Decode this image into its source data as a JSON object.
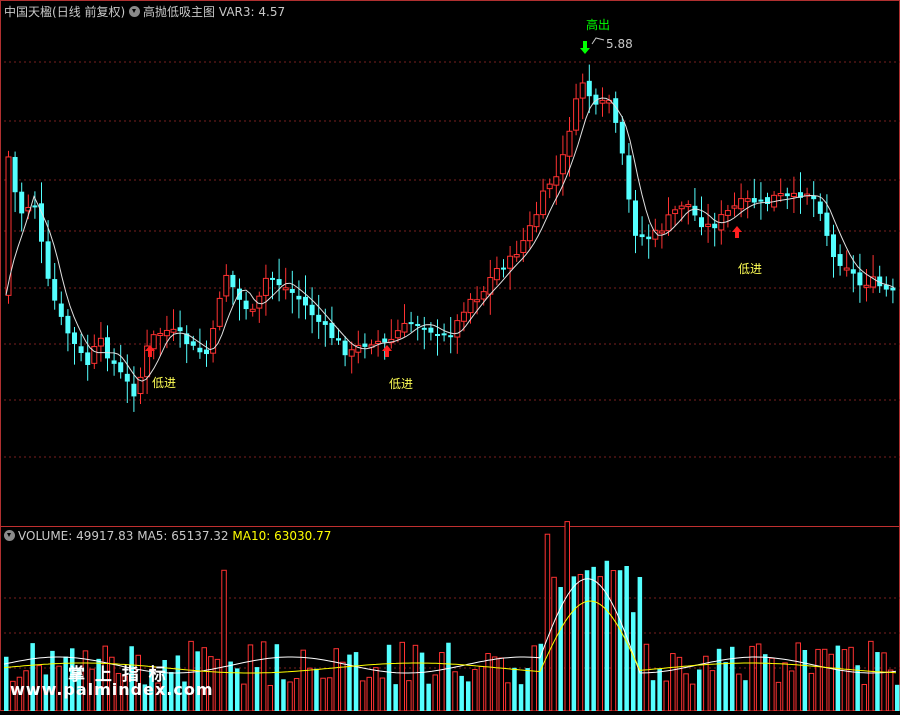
{
  "header": {
    "instrument": "中国天楹",
    "period_label": "(日线 前复权)",
    "indicator_name": "高抛低吸主图",
    "var3_label": "VAR3:",
    "var3_value": "4.57"
  },
  "volume_header": {
    "volume_label": "VOLUME:",
    "volume_value": "49917.83",
    "ma5_label": "MA5:",
    "ma5_value": "65137.32",
    "ma10_label": "MA10:",
    "ma10_value": "63030.77"
  },
  "signals": {
    "sell_text": "高出",
    "buy_text": "低进",
    "high_price_label": "5.88"
  },
  "watermark": {
    "line1": "掌 上 指 标",
    "line2": "www.palmindex.com"
  },
  "colors": {
    "up": "#ff3232",
    "down": "#54ffff",
    "ma": "#e0e0e0",
    "ma10": "#ffff00",
    "grid": "#7a1f1f",
    "sell": "#00ff00",
    "buy": "#ffff55"
  }
}
